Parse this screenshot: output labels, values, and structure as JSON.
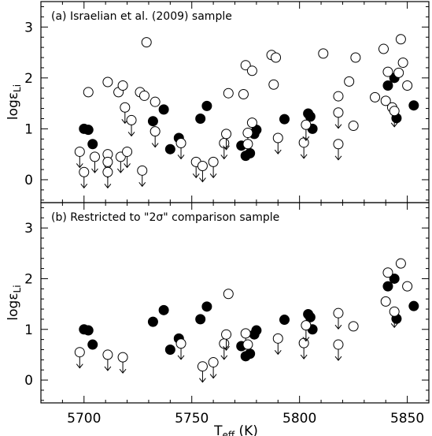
{
  "chart_data": [
    {
      "type": "scatter",
      "title": "(a) Israelian et al. (2009) sample",
      "xlabel": "T_eff (K)",
      "ylabel": "logε_Li",
      "xlim": [
        5680,
        5860
      ],
      "ylim": [
        -0.45,
        3.5
      ],
      "xticks": [
        5700,
        5750,
        5800,
        5850
      ],
      "yticks": [
        0,
        1,
        2,
        3
      ],
      "series": [
        {
          "marker": "filled-circle",
          "points": [
            {
              "x": 5700,
              "y": 1.0,
              "upper_limit": false
            },
            {
              "x": 5702,
              "y": 0.98,
              "upper_limit": false
            },
            {
              "x": 5704,
              "y": 0.7,
              "upper_limit": false
            },
            {
              "x": 5732,
              "y": 1.15,
              "upper_limit": false
            },
            {
              "x": 5737,
              "y": 1.38,
              "upper_limit": false
            },
            {
              "x": 5740,
              "y": 0.6,
              "upper_limit": false
            },
            {
              "x": 5744,
              "y": 0.82,
              "upper_limit": false
            },
            {
              "x": 5754,
              "y": 1.2,
              "upper_limit": false
            },
            {
              "x": 5757,
              "y": 1.45,
              "upper_limit": false
            },
            {
              "x": 5773,
              "y": 0.67,
              "upper_limit": false
            },
            {
              "x": 5775,
              "y": 0.47,
              "upper_limit": false
            },
            {
              "x": 5777,
              "y": 0.52,
              "upper_limit": false
            },
            {
              "x": 5779,
              "y": 0.9,
              "upper_limit": false
            },
            {
              "x": 5780,
              "y": 0.98,
              "upper_limit": false
            },
            {
              "x": 5793,
              "y": 1.19,
              "upper_limit": false
            },
            {
              "x": 5804,
              "y": 1.3,
              "upper_limit": false
            },
            {
              "x": 5805,
              "y": 1.24,
              "upper_limit": false
            },
            {
              "x": 5806,
              "y": 1.0,
              "upper_limit": false
            },
            {
              "x": 5841,
              "y": 1.85,
              "upper_limit": false
            },
            {
              "x": 5844,
              "y": 2.0,
              "upper_limit": false
            },
            {
              "x": 5845,
              "y": 1.21,
              "upper_limit": false
            },
            {
              "x": 5853,
              "y": 1.46,
              "upper_limit": false
            }
          ]
        },
        {
          "marker": "open-circle",
          "points": [
            {
              "x": 5698,
              "y": 0.55,
              "upper_limit": true
            },
            {
              "x": 5700,
              "y": 0.15,
              "upper_limit": true
            },
            {
              "x": 5702,
              "y": 1.72,
              "upper_limit": false
            },
            {
              "x": 5705,
              "y": 0.45,
              "upper_limit": true
            },
            {
              "x": 5711,
              "y": 1.92,
              "upper_limit": false
            },
            {
              "x": 5711,
              "y": 0.5,
              "upper_limit": true
            },
            {
              "x": 5711,
              "y": 0.35,
              "upper_limit": true
            },
            {
              "x": 5711,
              "y": 0.15,
              "upper_limit": true
            },
            {
              "x": 5716,
              "y": 1.72,
              "upper_limit": false
            },
            {
              "x": 5717,
              "y": 0.45,
              "upper_limit": true
            },
            {
              "x": 5718,
              "y": 1.85,
              "upper_limit": false
            },
            {
              "x": 5719,
              "y": 1.42,
              "upper_limit": true
            },
            {
              "x": 5720,
              "y": 0.55,
              "upper_limit": true
            },
            {
              "x": 5722,
              "y": 1.17,
              "upper_limit": true
            },
            {
              "x": 5726,
              "y": 1.72,
              "upper_limit": false
            },
            {
              "x": 5727,
              "y": 0.18,
              "upper_limit": true
            },
            {
              "x": 5728,
              "y": 1.65,
              "upper_limit": false
            },
            {
              "x": 5729,
              "y": 2.7,
              "upper_limit": false
            },
            {
              "x": 5733,
              "y": 1.53,
              "upper_limit": false
            },
            {
              "x": 5733,
              "y": 0.95,
              "upper_limit": true
            },
            {
              "x": 5745,
              "y": 0.72,
              "upper_limit": true
            },
            {
              "x": 5752,
              "y": 0.35,
              "upper_limit": true
            },
            {
              "x": 5755,
              "y": 0.27,
              "upper_limit": true
            },
            {
              "x": 5760,
              "y": 0.35,
              "upper_limit": true
            },
            {
              "x": 5765,
              "y": 0.72,
              "upper_limit": true
            },
            {
              "x": 5766,
              "y": 0.9,
              "upper_limit": true
            },
            {
              "x": 5767,
              "y": 1.7,
              "upper_limit": false
            },
            {
              "x": 5774,
              "y": 1.68,
              "upper_limit": false
            },
            {
              "x": 5775,
              "y": 2.25,
              "upper_limit": false
            },
            {
              "x": 5776,
              "y": 0.92,
              "upper_limit": true
            },
            {
              "x": 5776,
              "y": 0.7,
              "upper_limit": true
            },
            {
              "x": 5778,
              "y": 1.12,
              "upper_limit": false
            },
            {
              "x": 5778,
              "y": 2.14,
              "upper_limit": false
            },
            {
              "x": 5787,
              "y": 2.45,
              "upper_limit": false
            },
            {
              "x": 5788,
              "y": 1.87,
              "upper_limit": false
            },
            {
              "x": 5789,
              "y": 2.4,
              "upper_limit": false
            },
            {
              "x": 5790,
              "y": 0.82,
              "upper_limit": true
            },
            {
              "x": 5802,
              "y": 0.73,
              "upper_limit": true
            },
            {
              "x": 5803,
              "y": 1.08,
              "upper_limit": true
            },
            {
              "x": 5811,
              "y": 2.48,
              "upper_limit": false
            },
            {
              "x": 5818,
              "y": 1.32,
              "upper_limit": true
            },
            {
              "x": 5818,
              "y": 0.7,
              "upper_limit": true
            },
            {
              "x": 5818,
              "y": 1.64,
              "upper_limit": false
            },
            {
              "x": 5823,
              "y": 1.93,
              "upper_limit": false
            },
            {
              "x": 5825,
              "y": 1.06,
              "upper_limit": false
            },
            {
              "x": 5826,
              "y": 2.4,
              "upper_limit": false
            },
            {
              "x": 5835,
              "y": 1.62,
              "upper_limit": false
            },
            {
              "x": 5839,
              "y": 2.57,
              "upper_limit": false
            },
            {
              "x": 5840,
              "y": 1.55,
              "upper_limit": false
            },
            {
              "x": 5841,
              "y": 2.12,
              "upper_limit": false
            },
            {
              "x": 5843,
              "y": 1.42,
              "upper_limit": false
            },
            {
              "x": 5844,
              "y": 1.35,
              "upper_limit": true
            },
            {
              "x": 5846,
              "y": 2.1,
              "upper_limit": false
            },
            {
              "x": 5847,
              "y": 2.76,
              "upper_limit": false
            },
            {
              "x": 5848,
              "y": 2.3,
              "upper_limit": false
            },
            {
              "x": 5850,
              "y": 1.85,
              "upper_limit": false
            }
          ]
        }
      ]
    },
    {
      "type": "scatter",
      "title": "(b) Restricted to \"2σ\" comparison sample",
      "xlabel": "T_eff (K)",
      "ylabel": "logε_Li",
      "xlim": [
        5680,
        5860
      ],
      "ylim": [
        -0.45,
        3.5
      ],
      "xticks": [
        5700,
        5750,
        5800,
        5850
      ],
      "yticks": [
        0,
        1,
        2,
        3
      ],
      "series": [
        {
          "marker": "filled-circle",
          "points": [
            {
              "x": 5700,
              "y": 1.0,
              "upper_limit": false
            },
            {
              "x": 5702,
              "y": 0.98,
              "upper_limit": false
            },
            {
              "x": 5704,
              "y": 0.7,
              "upper_limit": false
            },
            {
              "x": 5732,
              "y": 1.15,
              "upper_limit": false
            },
            {
              "x": 5737,
              "y": 1.38,
              "upper_limit": false
            },
            {
              "x": 5740,
              "y": 0.6,
              "upper_limit": false
            },
            {
              "x": 5744,
              "y": 0.82,
              "upper_limit": false
            },
            {
              "x": 5754,
              "y": 1.2,
              "upper_limit": false
            },
            {
              "x": 5757,
              "y": 1.45,
              "upper_limit": false
            },
            {
              "x": 5773,
              "y": 0.67,
              "upper_limit": false
            },
            {
              "x": 5775,
              "y": 0.47,
              "upper_limit": false
            },
            {
              "x": 5777,
              "y": 0.52,
              "upper_limit": false
            },
            {
              "x": 5779,
              "y": 0.9,
              "upper_limit": false
            },
            {
              "x": 5780,
              "y": 0.98,
              "upper_limit": false
            },
            {
              "x": 5793,
              "y": 1.19,
              "upper_limit": false
            },
            {
              "x": 5804,
              "y": 1.3,
              "upper_limit": false
            },
            {
              "x": 5805,
              "y": 1.24,
              "upper_limit": false
            },
            {
              "x": 5806,
              "y": 1.0,
              "upper_limit": false
            },
            {
              "x": 5841,
              "y": 1.85,
              "upper_limit": false
            },
            {
              "x": 5844,
              "y": 2.0,
              "upper_limit": false
            },
            {
              "x": 5845,
              "y": 1.21,
              "upper_limit": false
            },
            {
              "x": 5853,
              "y": 1.46,
              "upper_limit": false
            }
          ]
        },
        {
          "marker": "open-circle",
          "points": [
            {
              "x": 5698,
              "y": 0.55,
              "upper_limit": true
            },
            {
              "x": 5711,
              "y": 0.5,
              "upper_limit": true
            },
            {
              "x": 5718,
              "y": 0.45,
              "upper_limit": true
            },
            {
              "x": 5745,
              "y": 0.72,
              "upper_limit": true
            },
            {
              "x": 5755,
              "y": 0.27,
              "upper_limit": true
            },
            {
              "x": 5760,
              "y": 0.35,
              "upper_limit": true
            },
            {
              "x": 5765,
              "y": 0.72,
              "upper_limit": true
            },
            {
              "x": 5766,
              "y": 0.9,
              "upper_limit": true
            },
            {
              "x": 5767,
              "y": 1.7,
              "upper_limit": false
            },
            {
              "x": 5775,
              "y": 0.92,
              "upper_limit": true
            },
            {
              "x": 5776,
              "y": 0.7,
              "upper_limit": true
            },
            {
              "x": 5790,
              "y": 0.82,
              "upper_limit": true
            },
            {
              "x": 5802,
              "y": 0.73,
              "upper_limit": true
            },
            {
              "x": 5803,
              "y": 1.08,
              "upper_limit": true
            },
            {
              "x": 5818,
              "y": 1.32,
              "upper_limit": true
            },
            {
              "x": 5818,
              "y": 0.7,
              "upper_limit": true
            },
            {
              "x": 5825,
              "y": 1.06,
              "upper_limit": false
            },
            {
              "x": 5840,
              "y": 1.55,
              "upper_limit": false
            },
            {
              "x": 5841,
              "y": 2.12,
              "upper_limit": false
            },
            {
              "x": 5844,
              "y": 1.35,
              "upper_limit": true
            },
            {
              "x": 5847,
              "y": 2.3,
              "upper_limit": false
            },
            {
              "x": 5850,
              "y": 1.85,
              "upper_limit": false
            }
          ]
        }
      ]
    }
  ]
}
